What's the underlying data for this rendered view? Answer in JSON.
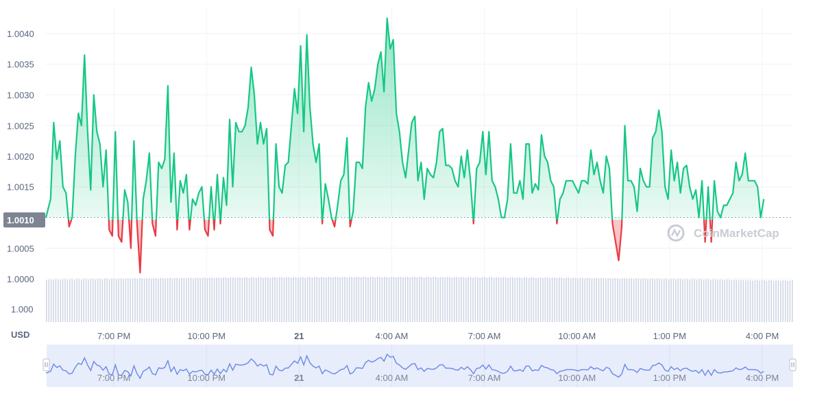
{
  "chart_data": {
    "type": "line",
    "unit_label": "USD",
    "watermark": "CoinMarketCap",
    "baseline_value": 1.001,
    "baseline_label": "1.0010",
    "colors": {
      "above": "#16c784",
      "below": "#ea3943",
      "volume": "#cfd6e4",
      "navigator": "#6f8de8"
    },
    "y_price_ticks": [
      {
        "value": 1.004,
        "label": "1.0040"
      },
      {
        "value": 1.0035,
        "label": "1.0035"
      },
      {
        "value": 1.003,
        "label": "1.0030"
      },
      {
        "value": 1.0025,
        "label": "1.0025"
      },
      {
        "value": 1.002,
        "label": "1.0020"
      },
      {
        "value": 1.0015,
        "label": "1.0015"
      },
      {
        "value": 1.0005,
        "label": "1.0005"
      },
      {
        "value": 1.0,
        "label": "1.0000"
      }
    ],
    "y_volume_tick": "1.000",
    "x_ticks": [
      {
        "label": "7:00 PM",
        "bold": false
      },
      {
        "label": "10:00 PM",
        "bold": false
      },
      {
        "label": "21",
        "bold": true
      },
      {
        "label": "4:00 AM",
        "bold": false
      },
      {
        "label": "7:00 AM",
        "bold": false
      },
      {
        "label": "10:00 AM",
        "bold": false
      },
      {
        "label": "1:00 PM",
        "bold": false
      },
      {
        "label": "4:00 PM",
        "bold": false
      }
    ],
    "x_range_hours": [
      -2.2,
      22.0
    ],
    "series": [
      {
        "points": [
          [
            -2.2,
            1.001
          ],
          [
            -2.05,
            1.0013
          ],
          [
            -1.95,
            1.00255
          ],
          [
            -1.85,
            1.00195
          ],
          [
            -1.75,
            1.00225
          ],
          [
            -1.65,
            1.0015
          ],
          [
            -1.55,
            1.0014
          ],
          [
            -1.45,
            1.00085
          ],
          [
            -1.35,
            1.001
          ],
          [
            -1.25,
            1.002
          ],
          [
            -1.15,
            1.0027
          ],
          [
            -1.05,
            1.0025
          ],
          [
            -0.95,
            1.00365
          ],
          [
            -0.85,
            1.0024
          ],
          [
            -0.75,
            1.00145
          ],
          [
            -0.65,
            1.003
          ],
          [
            -0.55,
            1.0024
          ],
          [
            -0.45,
            1.0022
          ],
          [
            -0.35,
            1.0015
          ],
          [
            -0.25,
            1.0021
          ],
          [
            -0.15,
            1.0008
          ],
          [
            -0.05,
            1.0007
          ],
          [
            0.05,
            1.0024
          ],
          [
            0.15,
            1.0007
          ],
          [
            0.25,
            1.0006
          ],
          [
            0.35,
            1.00145
          ],
          [
            0.45,
            1.00125
          ],
          [
            0.55,
            1.0005
          ],
          [
            0.65,
            1.00225
          ],
          [
            0.75,
            1.0009
          ],
          [
            0.85,
            1.0001
          ],
          [
            0.95,
            1.0013
          ],
          [
            1.05,
            1.0016
          ],
          [
            1.15,
            1.00205
          ],
          [
            1.25,
            1.0009
          ],
          [
            1.35,
            1.0007
          ],
          [
            1.45,
            1.0019
          ],
          [
            1.55,
            1.0018
          ],
          [
            1.65,
            1.00195
          ],
          [
            1.75,
            1.00315
          ],
          [
            1.85,
            1.00125
          ],
          [
            1.95,
            1.00205
          ],
          [
            2.05,
            1.0008
          ],
          [
            2.15,
            1.0016
          ],
          [
            2.25,
            1.0014
          ],
          [
            2.35,
            1.0017
          ],
          [
            2.45,
            1.0008
          ],
          [
            2.55,
            1.0013
          ],
          [
            2.65,
            1.0012
          ],
          [
            2.75,
            1.0014
          ],
          [
            2.85,
            1.0015
          ],
          [
            2.95,
            1.0008
          ],
          [
            3.05,
            1.0007
          ],
          [
            3.15,
            1.0015
          ],
          [
            3.25,
            1.0008
          ],
          [
            3.35,
            1.0017
          ],
          [
            3.45,
            1.0009
          ],
          [
            3.55,
            1.00165
          ],
          [
            3.65,
            1.0012
          ],
          [
            3.75,
            1.0026
          ],
          [
            3.85,
            1.0015
          ],
          [
            3.95,
            1.00255
          ],
          [
            4.05,
            1.0024
          ],
          [
            4.15,
            1.0024
          ],
          [
            4.25,
            1.0025
          ],
          [
            4.35,
            1.0028
          ],
          [
            4.45,
            1.00345
          ],
          [
            4.55,
            1.003
          ],
          [
            4.65,
            1.0022
          ],
          [
            4.75,
            1.00255
          ],
          [
            4.85,
            1.0022
          ],
          [
            4.95,
            1.00245
          ],
          [
            5.05,
            1.0008
          ],
          [
            5.15,
            1.0007
          ],
          [
            5.25,
            1.0022
          ],
          [
            5.35,
            1.0015
          ],
          [
            5.45,
            1.0014
          ],
          [
            5.55,
            1.00185
          ],
          [
            5.65,
            1.0019
          ],
          [
            5.75,
            1.0025
          ],
          [
            5.85,
            1.0031
          ],
          [
            5.95,
            1.0027
          ],
          [
            6.05,
            1.0038
          ],
          [
            6.15,
            1.0024
          ],
          [
            6.25,
            1.00398
          ],
          [
            6.35,
            1.0028
          ],
          [
            6.45,
            1.0022
          ],
          [
            6.55,
            1.0019
          ],
          [
            6.65,
            1.0022
          ],
          [
            6.75,
            1.0009
          ],
          [
            6.85,
            1.00155
          ],
          [
            6.95,
            1.0013
          ],
          [
            7.05,
            1.001
          ],
          [
            7.15,
            1.00085
          ],
          [
            7.25,
            1.0012
          ],
          [
            7.35,
            1.0016
          ],
          [
            7.45,
            1.0017
          ],
          [
            7.55,
            1.0023
          ],
          [
            7.65,
            1.00085
          ],
          [
            7.75,
            1.0011
          ],
          [
            7.85,
            1.0019
          ],
          [
            7.95,
            1.0019
          ],
          [
            8.05,
            1.0018
          ],
          [
            8.15,
            1.0028
          ],
          [
            8.25,
            1.0032
          ],
          [
            8.35,
            1.0029
          ],
          [
            8.45,
            1.0031
          ],
          [
            8.55,
            1.0035
          ],
          [
            8.65,
            1.0037
          ],
          [
            8.75,
            1.00305
          ],
          [
            8.85,
            1.00425
          ],
          [
            8.95,
            1.00375
          ],
          [
            9.05,
            1.0039
          ],
          [
            9.15,
            1.0027
          ],
          [
            9.25,
            1.0024
          ],
          [
            9.35,
            1.0019
          ],
          [
            9.45,
            1.00165
          ],
          [
            9.55,
            1.0021
          ],
          [
            9.65,
            1.00255
          ],
          [
            9.75,
            1.00265
          ],
          [
            9.85,
            1.0016
          ],
          [
            9.95,
            1.0019
          ],
          [
            10.05,
            1.0013
          ],
          [
            10.15,
            1.0018
          ],
          [
            10.25,
            1.0017
          ],
          [
            10.35,
            1.00165
          ],
          [
            10.45,
            1.0019
          ],
          [
            10.55,
            1.0024
          ],
          [
            10.65,
            1.00245
          ],
          [
            10.75,
            1.00185
          ],
          [
            10.85,
            1.00185
          ],
          [
            10.95,
            1.0018
          ],
          [
            11.05,
            1.0016
          ],
          [
            11.15,
            1.0015
          ],
          [
            11.25,
            1.002
          ],
          [
            11.35,
            1.00165
          ],
          [
            11.45,
            1.0021
          ],
          [
            11.55,
            1.0016
          ],
          [
            11.65,
            1.0009
          ],
          [
            11.75,
            1.0018
          ],
          [
            11.85,
            1.0019
          ],
          [
            11.95,
            1.0024
          ],
          [
            12.05,
            1.0017
          ],
          [
            12.15,
            1.0024
          ],
          [
            12.25,
            1.0016
          ],
          [
            12.35,
            1.0015
          ],
          [
            12.45,
            1.0013
          ],
          [
            12.55,
            1.001
          ],
          [
            12.65,
            1.001
          ],
          [
            12.75,
            1.0013
          ],
          [
            12.85,
            1.0022
          ],
          [
            12.95,
            1.0014
          ],
          [
            13.05,
            1.0014
          ],
          [
            13.15,
            1.0016
          ],
          [
            13.25,
            1.0013
          ],
          [
            13.35,
            1.0022
          ],
          [
            13.45,
            1.0022
          ],
          [
            13.55,
            1.0014
          ],
          [
            13.65,
            1.00155
          ],
          [
            13.75,
            1.00145
          ],
          [
            13.85,
            1.00235
          ],
          [
            13.95,
            1.002
          ],
          [
            14.05,
            1.0019
          ],
          [
            14.15,
            1.0016
          ],
          [
            14.25,
            1.0015
          ],
          [
            14.35,
            1.0009
          ],
          [
            14.45,
            1.0013
          ],
          [
            14.55,
            1.0014
          ],
          [
            14.65,
            1.0016
          ],
          [
            14.75,
            1.0016
          ],
          [
            14.85,
            1.0016
          ],
          [
            14.95,
            1.0015
          ],
          [
            15.05,
            1.0014
          ],
          [
            15.15,
            1.0016
          ],
          [
            15.25,
            1.0016
          ],
          [
            15.35,
            1.00155
          ],
          [
            15.45,
            1.0021
          ],
          [
            15.55,
            1.0017
          ],
          [
            15.65,
            1.0019
          ],
          [
            15.75,
            1.0016
          ],
          [
            15.85,
            1.0014
          ],
          [
            15.95,
            1.002
          ],
          [
            16.05,
            1.0018
          ],
          [
            16.15,
            1.0009
          ],
          [
            16.25,
            1.0006
          ],
          [
            16.35,
            1.0003
          ],
          [
            16.45,
            1.00085
          ],
          [
            16.55,
            1.0025
          ],
          [
            16.65,
            1.0016
          ],
          [
            16.75,
            1.0016
          ],
          [
            16.85,
            1.0015
          ],
          [
            16.95,
            1.0011
          ],
          [
            17.05,
            1.0018
          ],
          [
            17.15,
            1.0016
          ],
          [
            17.25,
            1.0015
          ],
          [
            17.35,
            1.0015
          ],
          [
            17.45,
            1.0023
          ],
          [
            17.55,
            1.0024
          ],
          [
            17.65,
            1.00275
          ],
          [
            17.75,
            1.0024
          ],
          [
            17.85,
            1.0015
          ],
          [
            17.95,
            1.0013
          ],
          [
            18.05,
            1.0021
          ],
          [
            18.15,
            1.0016
          ],
          [
            18.25,
            1.0019
          ],
          [
            18.35,
            1.0014
          ],
          [
            18.45,
            1.0018
          ],
          [
            18.55,
            1.00185
          ],
          [
            18.65,
            1.0015
          ],
          [
            18.75,
            1.0013
          ],
          [
            18.85,
            1.00145
          ],
          [
            18.95,
            1.001
          ],
          [
            19.05,
            1.0016
          ],
          [
            19.15,
            1.0006
          ],
          [
            19.25,
            1.0015
          ],
          [
            19.35,
            1.0006
          ],
          [
            19.45,
            1.0016
          ],
          [
            19.55,
            1.0011
          ],
          [
            19.65,
            1.001
          ],
          [
            19.75,
            1.0012
          ],
          [
            19.85,
            1.0012
          ],
          [
            19.95,
            1.0013
          ],
          [
            20.05,
            1.0014
          ],
          [
            20.15,
            1.0019
          ],
          [
            20.25,
            1.0016
          ],
          [
            20.35,
            1.0017
          ],
          [
            20.45,
            1.00205
          ],
          [
            20.55,
            1.0016
          ],
          [
            20.65,
            1.0016
          ],
          [
            20.75,
            1.0016
          ],
          [
            20.85,
            1.0015
          ],
          [
            20.95,
            1.001
          ],
          [
            21.05,
            1.0013
          ]
        ]
      }
    ]
  }
}
